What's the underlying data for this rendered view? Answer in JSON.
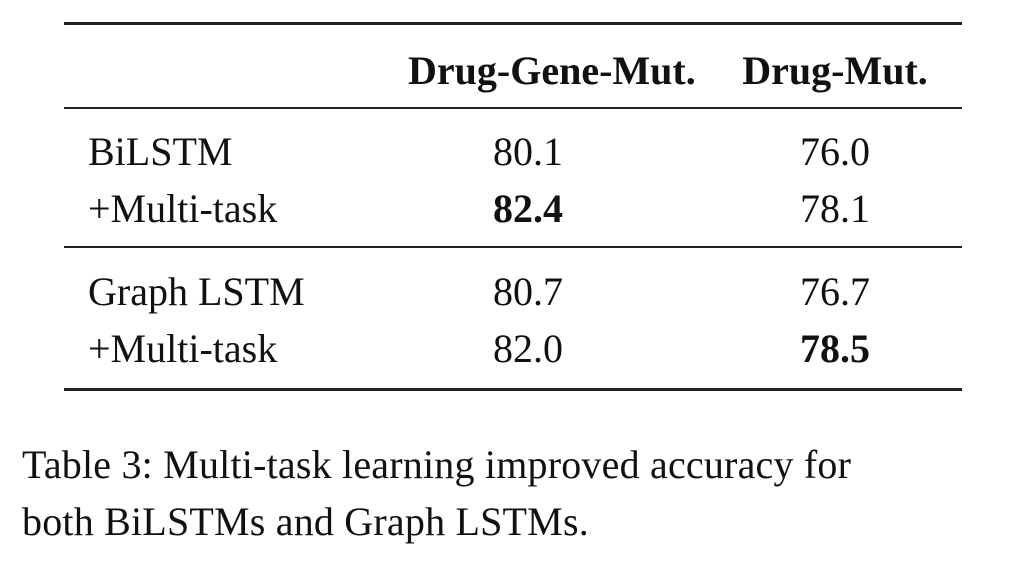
{
  "table": {
    "headers": [
      "",
      "Drug-Gene-Mut.",
      "Drug-Mut."
    ],
    "groups": [
      {
        "rows": [
          {
            "label": "BiLSTM",
            "values": [
              "80.1",
              "76.0"
            ],
            "bold": [
              false,
              false
            ]
          },
          {
            "label": "+Multi-task",
            "values": [
              "82.4",
              "78.1"
            ],
            "bold": [
              true,
              false
            ]
          }
        ]
      },
      {
        "rows": [
          {
            "label": "Graph LSTM",
            "values": [
              "80.7",
              "76.7"
            ],
            "bold": [
              false,
              false
            ]
          },
          {
            "label": "+Multi-task",
            "values": [
              "82.0",
              "78.5"
            ],
            "bold": [
              false,
              true
            ]
          }
        ]
      }
    ]
  },
  "caption": {
    "line1": "Table 3: Multi-task learning improved accuracy for",
    "line2": "both BiLSTMs and Graph LSTMs."
  }
}
